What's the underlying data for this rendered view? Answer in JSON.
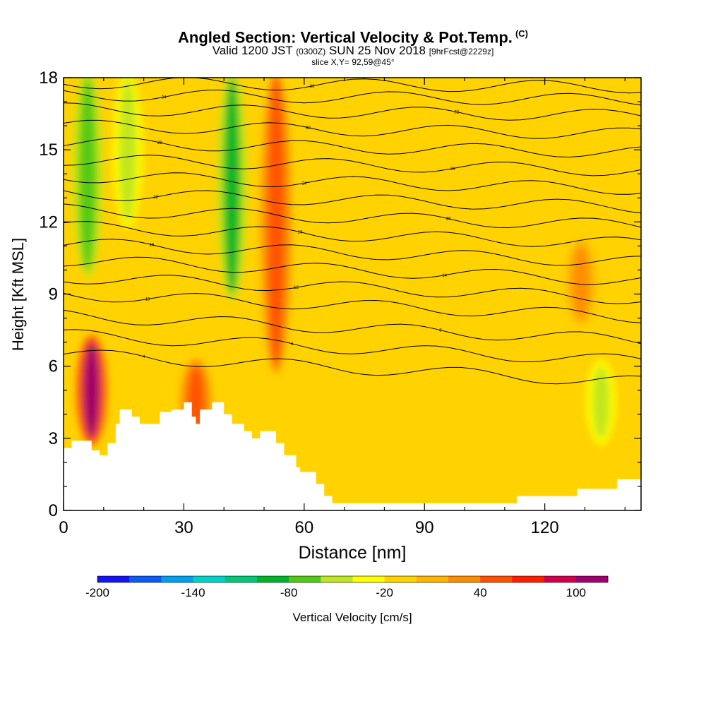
{
  "header": {
    "title": "Angled Section: Vertical Velocity & Pot.Temp.",
    "title_units": "(C)",
    "valid_prefix": "Valid 1200 JST",
    "valid_utc": "(0300Z)",
    "valid_date": "SUN 25 Nov 2018",
    "forecast_note": "[9hrFcst@2229z]",
    "slice": "slice X,Y= 92,59@45°"
  },
  "chart_data": {
    "type": "heatmap",
    "xlabel": "Distance [nm]",
    "ylabel": "Height [Kft MSL]",
    "xlim": [
      0,
      144
    ],
    "ylim": [
      0,
      18
    ],
    "x_ticks": [
      0,
      30,
      60,
      90,
      120
    ],
    "y_ticks": [
      0,
      3,
      6,
      9,
      12,
      15,
      18
    ],
    "colorbar": {
      "label": "Vertical Velocity [cm/s]",
      "tick_labels": [
        "-200",
        "-140",
        "-80",
        "-20",
        "40",
        "100"
      ],
      "tick_values": [
        -200,
        -140,
        -80,
        -20,
        40,
        100
      ],
      "range": [
        -200,
        120
      ],
      "colors": [
        "#1414f0",
        "#0a5af5",
        "#00a0f0",
        "#00d2c8",
        "#00c878",
        "#00b428",
        "#50c814",
        "#bee61e",
        "#ffff00",
        "#ffd200",
        "#ffb400",
        "#ff8c00",
        "#ff5000",
        "#ff1e00",
        "#d2004b",
        "#a0006e"
      ]
    },
    "background_velocity": -10,
    "velocity_features": [
      {
        "x": 6,
        "z_top": 18,
        "z_bottom": 10,
        "value": -80,
        "kind": "downdraft"
      },
      {
        "x": 16,
        "z_top": 18,
        "z_bottom": 12,
        "value": -60,
        "kind": "downdraft"
      },
      {
        "x": 42,
        "z_top": 18,
        "z_bottom": 9,
        "value": -85,
        "kind": "downdraft"
      },
      {
        "x": 53,
        "z_top": 18,
        "z_bottom": 6,
        "value": 55,
        "kind": "updraft"
      },
      {
        "x": 7,
        "z_top": 7,
        "z_bottom": 3,
        "value": 100,
        "kind": "updraft"
      },
      {
        "x": 33,
        "z_top": 6,
        "z_bottom": 3,
        "value": 45,
        "kind": "updraft"
      },
      {
        "x": 134,
        "z_top": 6,
        "z_bottom": 3,
        "value": -60,
        "kind": "downdraft"
      },
      {
        "x": 129,
        "z_top": 11,
        "z_bottom": 8,
        "value": 35,
        "kind": "updraft"
      }
    ],
    "terrain": [
      [
        0,
        2.6
      ],
      [
        2,
        2.6
      ],
      [
        2,
        2.9
      ],
      [
        7,
        2.9
      ],
      [
        7,
        2.5
      ],
      [
        9,
        2.5
      ],
      [
        9,
        2.3
      ],
      [
        11,
        2.3
      ],
      [
        11,
        2.8
      ],
      [
        13,
        2.8
      ],
      [
        13,
        3.6
      ],
      [
        14,
        3.6
      ],
      [
        14,
        4.2
      ],
      [
        17,
        4.2
      ],
      [
        17,
        3.9
      ],
      [
        19,
        3.9
      ],
      [
        19,
        3.6
      ],
      [
        24,
        3.6
      ],
      [
        24,
        4.1
      ],
      [
        27,
        4.1
      ],
      [
        27,
        4.2
      ],
      [
        30,
        4.2
      ],
      [
        30,
        4.5
      ],
      [
        32,
        4.5
      ],
      [
        32,
        3.9
      ],
      [
        33,
        3.9
      ],
      [
        33,
        3.6
      ],
      [
        34,
        3.6
      ],
      [
        34,
        4.2
      ],
      [
        37,
        4.2
      ],
      [
        37,
        4.5
      ],
      [
        40,
        4.5
      ],
      [
        40,
        4.0
      ],
      [
        42,
        4.0
      ],
      [
        42,
        3.6
      ],
      [
        45,
        3.6
      ],
      [
        45,
        3.3
      ],
      [
        47,
        3.3
      ],
      [
        47,
        3.0
      ],
      [
        49,
        3.0
      ],
      [
        49,
        3.3
      ],
      [
        53,
        3.3
      ],
      [
        53,
        2.8
      ],
      [
        55,
        2.8
      ],
      [
        55,
        2.3
      ],
      [
        58,
        2.3
      ],
      [
        58,
        1.8
      ],
      [
        59,
        1.8
      ],
      [
        59,
        1.6
      ],
      [
        63,
        1.6
      ],
      [
        63,
        1.1
      ],
      [
        65,
        1.1
      ],
      [
        65,
        0.6
      ],
      [
        67,
        0.6
      ],
      [
        67,
        0.3
      ],
      [
        113,
        0.3
      ],
      [
        113,
        0.6
      ],
      [
        128,
        0.6
      ],
      [
        128,
        0.9
      ],
      [
        138,
        0.9
      ],
      [
        138,
        1.3
      ],
      [
        144,
        1.3
      ]
    ],
    "isentropes": [
      {
        "value": 4,
        "z_left": 6.5
      },
      {
        "value": 6,
        "z_left": 7.3
      },
      {
        "value": 8,
        "z_left": 8.1
      },
      {
        "value": 10,
        "z_left": 9.0
      },
      {
        "value": 12,
        "z_left": 9.7
      },
      {
        "value": 14,
        "z_left": 10.4
      },
      {
        "value": 16,
        "z_left": 11.1
      },
      {
        "value": 18,
        "z_left": 11.8
      },
      {
        "value": 20,
        "z_left": 12.5
      },
      {
        "value": 22,
        "z_left": 13.2
      },
      {
        "value": 24,
        "z_left": 13.9
      },
      {
        "value": 26,
        "z_left": 14.6
      },
      {
        "value": 28,
        "z_left": 15.3
      },
      {
        "value": 30,
        "z_left": 16.0
      },
      {
        "value": 32,
        "z_left": 16.7
      },
      {
        "value": 34,
        "z_left": 17.3
      },
      {
        "value": 36,
        "z_left": 17.8
      }
    ],
    "grid": false
  }
}
